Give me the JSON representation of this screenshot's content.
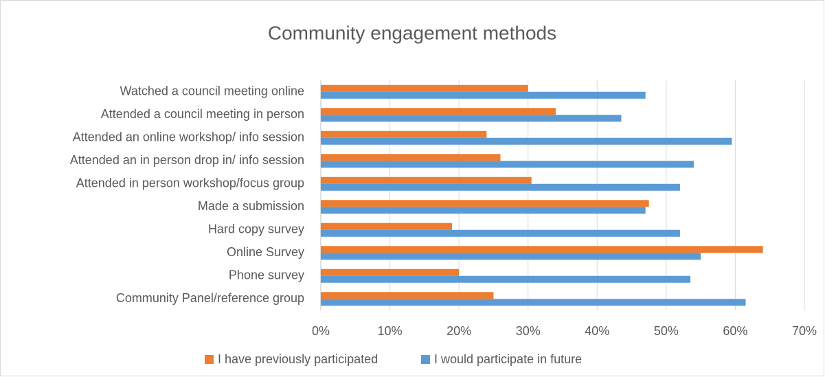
{
  "chart_data": {
    "type": "bar",
    "orientation": "horizontal",
    "title": "Community engagement methods",
    "categories": [
      "Watched a council meeting online",
      "Attended a council meeting in person",
      "Attended an online workshop/ info session",
      "Attended an in person drop in/ info session",
      "Attended in person workshop/focus group",
      "Made a submission",
      "Hard copy survey",
      "Online Survey",
      "Phone survey",
      "Community Panel/reference group"
    ],
    "series": [
      {
        "name": "I have previously participated",
        "color": "#ed7d31",
        "values": [
          30,
          34,
          24,
          26,
          30.5,
          47.5,
          19,
          64,
          20,
          25
        ]
      },
      {
        "name": "I would participate in future",
        "color": "#5b9bd5",
        "values": [
          47,
          43.5,
          59.5,
          54,
          52,
          47,
          52,
          55,
          53.5,
          61.5
        ]
      }
    ],
    "xlim": [
      0,
      70
    ],
    "xticks": [
      {
        "value": 0,
        "label": "0%"
      },
      {
        "value": 10,
        "label": "10%"
      },
      {
        "value": 20,
        "label": "20%"
      },
      {
        "value": 30,
        "label": "30%"
      },
      {
        "value": 40,
        "label": "40%"
      },
      {
        "value": 50,
        "label": "50%"
      },
      {
        "value": 60,
        "label": "60%"
      },
      {
        "value": 70,
        "label": "70%"
      }
    ],
    "grid": true,
    "legend": "bottom"
  }
}
